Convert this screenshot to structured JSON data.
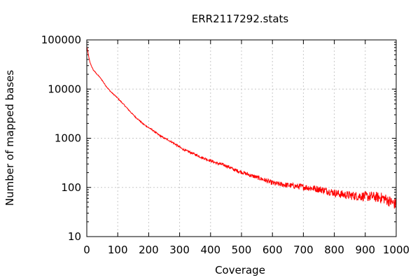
{
  "chart_data": {
    "type": "line",
    "title": "ERR2117292.stats",
    "xlabel": "Coverage",
    "ylabel": "Number of mapped bases",
    "xlim": [
      0,
      1000
    ],
    "ylim": [
      10,
      100000
    ],
    "yscale": "log",
    "grid": true,
    "x_ticks": [
      {
        "value": 0,
        "label": "0"
      },
      {
        "value": 100,
        "label": "100"
      },
      {
        "value": 200,
        "label": "200"
      },
      {
        "value": 300,
        "label": "300"
      },
      {
        "value": 400,
        "label": "400"
      },
      {
        "value": 500,
        "label": "500"
      },
      {
        "value": 600,
        "label": "600"
      },
      {
        "value": 700,
        "label": "700"
      },
      {
        "value": 800,
        "label": "800"
      },
      {
        "value": 900,
        "label": "900"
      },
      {
        "value": 1000,
        "label": "1000"
      }
    ],
    "y_ticks": [
      {
        "value": 10,
        "label": "10"
      },
      {
        "value": 100,
        "label": "100"
      },
      {
        "value": 1000,
        "label": "1000"
      },
      {
        "value": 10000,
        "label": "10000"
      },
      {
        "value": 100000,
        "label": "100000"
      }
    ],
    "series": [
      {
        "color": "#ff0000",
        "x": [
          1,
          5,
          10,
          20,
          30,
          40,
          50,
          60,
          70,
          80,
          90,
          100,
          110,
          120,
          130,
          140,
          150,
          160,
          170,
          180,
          190,
          200,
          210,
          220,
          230,
          240,
          250,
          260,
          270,
          280,
          290,
          300,
          310,
          320,
          330,
          340,
          350,
          360,
          370,
          380,
          390,
          400,
          410,
          420,
          430,
          440,
          450,
          460,
          470,
          480,
          490,
          500,
          510,
          520,
          530,
          540,
          550,
          560,
          570,
          580,
          590,
          600,
          610,
          620,
          630,
          640,
          650,
          660,
          670,
          680,
          690,
          700,
          710,
          720,
          730,
          740,
          750,
          760,
          770,
          780,
          790,
          800,
          810,
          820,
          830,
          840,
          850,
          860,
          870,
          880,
          890,
          900,
          910,
          920,
          930,
          940,
          950,
          960,
          970,
          980,
          990,
          1000
        ],
        "y": [
          70000,
          50000,
          35000,
          25000,
          21000,
          18000,
          15000,
          12000,
          10000,
          8500,
          7500,
          6500,
          5600,
          4800,
          4100,
          3500,
          3000,
          2600,
          2300,
          2000,
          1800,
          1650,
          1500,
          1350,
          1200,
          1100,
          1000,
          950,
          870,
          800,
          730,
          660,
          600,
          560,
          530,
          500,
          470,
          440,
          410,
          390,
          370,
          350,
          330,
          310,
          300,
          290,
          275,
          260,
          240,
          225,
          215,
          205,
          195,
          185,
          175,
          168,
          160,
          152,
          145,
          138,
          130,
          124,
          120,
          117,
          115,
          113,
          111,
          109,
          107,
          105,
          104,
          102,
          100,
          98,
          96,
          94,
          92,
          90,
          87,
          84,
          81,
          78,
          75,
          73,
          71,
          70,
          69,
          68,
          67,
          67,
          66,
          66,
          65,
          65,
          64,
          63,
          62,
          60,
          56,
          52,
          48,
          45
        ]
      }
    ]
  }
}
